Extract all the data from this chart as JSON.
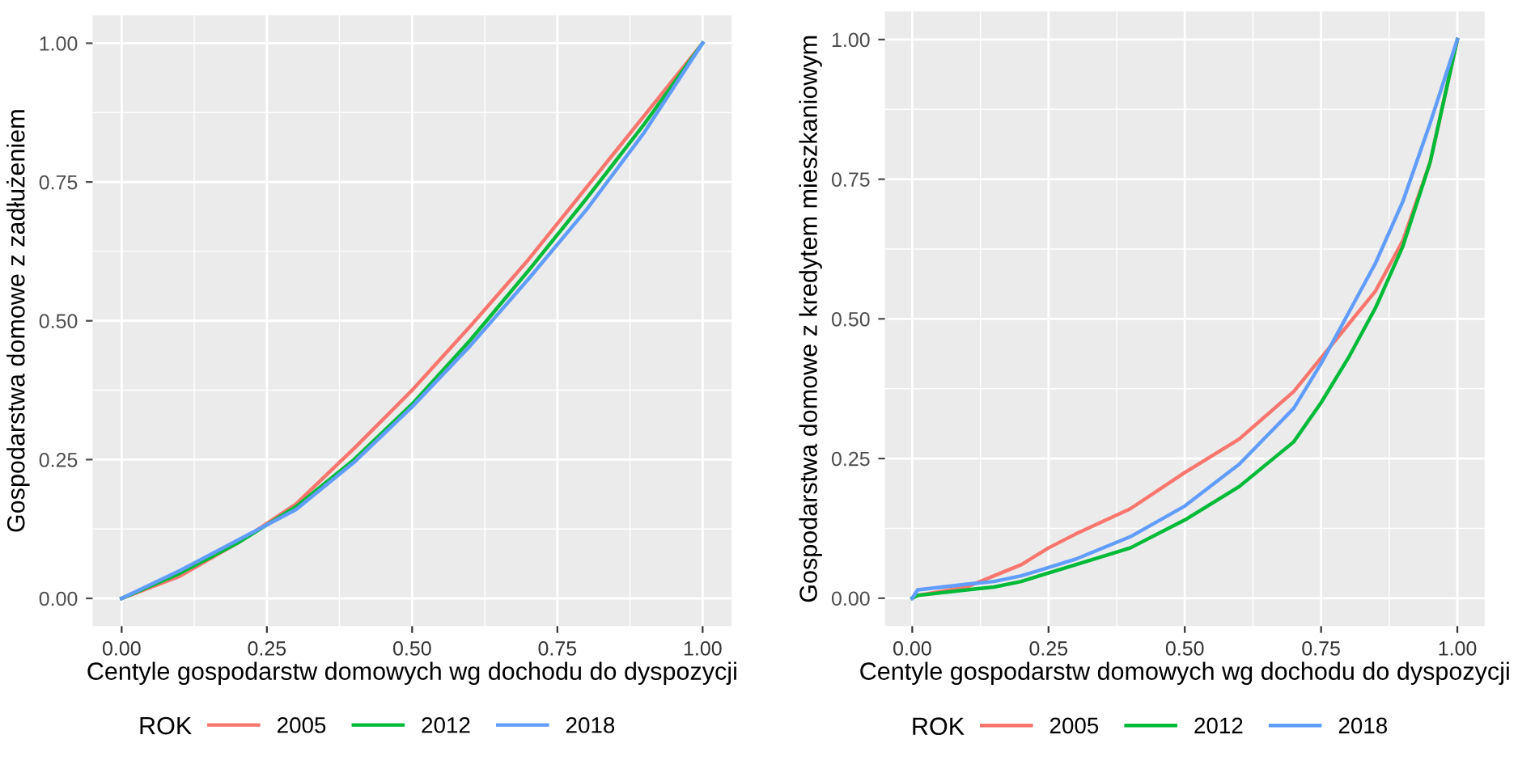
{
  "chart_data": [
    {
      "type": "line",
      "xlabel": "Centyle gospodarstw domowych wg dochodu do dyspozycji",
      "ylabel": "Gospodarstwa domowe z zadłużeniem",
      "legend_title": "ROK",
      "legend": "bottom",
      "grid": true,
      "xlim": [
        -0.05,
        1.05
      ],
      "ylim": [
        -0.05,
        1.05
      ],
      "xticks": [
        {
          "value": 0,
          "label": "0.00"
        },
        {
          "value": 0.25,
          "label": "0.25"
        },
        {
          "value": 0.5,
          "label": "0.50"
        },
        {
          "value": 0.75,
          "label": "0.75"
        },
        {
          "value": 1,
          "label": "1.00"
        }
      ],
      "yticks": [
        {
          "value": 0,
          "label": "0.00"
        },
        {
          "value": 0.25,
          "label": "0.25"
        },
        {
          "value": 0.5,
          "label": "0.50"
        },
        {
          "value": 0.75,
          "label": "0.75"
        },
        {
          "value": 1,
          "label": "1.00"
        }
      ],
      "x": [
        0,
        0.1,
        0.2,
        0.3,
        0.4,
        0.5,
        0.6,
        0.7,
        0.8,
        0.9,
        1.0
      ],
      "series": [
        {
          "name": "2005",
          "color": "#f8766d",
          "values": [
            0,
            0.04,
            0.1,
            0.17,
            0.27,
            0.375,
            0.49,
            0.61,
            0.74,
            0.87,
            1.0
          ]
        },
        {
          "name": "2012",
          "color": "#00ba38",
          "values": [
            0,
            0.045,
            0.1,
            0.165,
            0.25,
            0.35,
            0.465,
            0.59,
            0.72,
            0.855,
            1.0
          ]
        },
        {
          "name": "2018",
          "color": "#619cff",
          "values": [
            0,
            0.05,
            0.105,
            0.16,
            0.245,
            0.345,
            0.455,
            0.575,
            0.7,
            0.84,
            1.0
          ]
        }
      ]
    },
    {
      "type": "line",
      "xlabel": "Centyle gospodarstw domowych wg dochodu do dyspozycji",
      "ylabel": "Gospodarstwa domowe z kredytem mieszkaniowym",
      "legend_title": "ROK",
      "legend": "bottom",
      "grid": true,
      "xlim": [
        -0.05,
        1.05
      ],
      "ylim": [
        -0.05,
        1.05
      ],
      "xticks": [
        {
          "value": 0,
          "label": "0.00"
        },
        {
          "value": 0.25,
          "label": "0.25"
        },
        {
          "value": 0.5,
          "label": "0.50"
        },
        {
          "value": 0.75,
          "label": "0.75"
        },
        {
          "value": 1,
          "label": "1.00"
        }
      ],
      "yticks": [
        {
          "value": 0,
          "label": "0.00"
        },
        {
          "value": 0.25,
          "label": "0.25"
        },
        {
          "value": 0.5,
          "label": "0.50"
        },
        {
          "value": 0.75,
          "label": "0.75"
        },
        {
          "value": 1,
          "label": "1.00"
        }
      ],
      "x": [
        0,
        0.01,
        0.1,
        0.15,
        0.2,
        0.25,
        0.3,
        0.4,
        0.5,
        0.6,
        0.7,
        0.75,
        0.8,
        0.85,
        0.9,
        0.95,
        1.0
      ],
      "series": [
        {
          "name": "2005",
          "color": "#f8766d",
          "values": [
            0,
            0.005,
            0.02,
            0.04,
            0.06,
            0.09,
            0.115,
            0.16,
            0.225,
            0.285,
            0.37,
            0.43,
            0.49,
            0.55,
            0.64,
            0.78,
            1.0
          ]
        },
        {
          "name": "2012",
          "color": "#00ba38",
          "values": [
            0,
            0.005,
            0.015,
            0.02,
            0.03,
            0.045,
            0.06,
            0.09,
            0.14,
            0.2,
            0.28,
            0.35,
            0.43,
            0.52,
            0.63,
            0.78,
            1.0
          ]
        },
        {
          "name": "2018",
          "color": "#619cff",
          "values": [
            0,
            0.015,
            0.025,
            0.03,
            0.04,
            0.055,
            0.07,
            0.11,
            0.165,
            0.24,
            0.34,
            0.42,
            0.51,
            0.6,
            0.71,
            0.85,
            1.0
          ]
        }
      ]
    }
  ]
}
